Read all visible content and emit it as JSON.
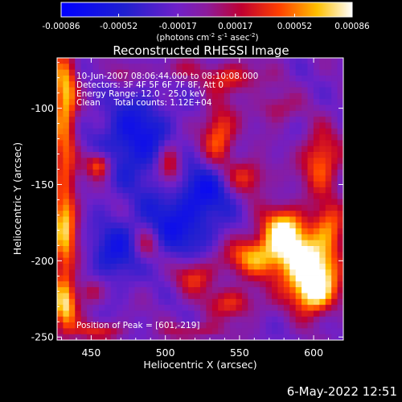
{
  "chart_data": {
    "type": "heatmap",
    "title": "Reconstructed RHESSI Image",
    "xlabel": "Heliocentric X (arcsec)",
    "ylabel": "Heliocentric Y (arcsec)",
    "xlim": [
      427,
      620
    ],
    "ylim": [
      -252,
      -67
    ],
    "x_ticks": [
      450,
      500,
      550,
      600
    ],
    "y_ticks": [
      -100,
      -150,
      -200,
      -250
    ],
    "x_tick_labels": [
      "450",
      "500",
      "550",
      "600"
    ],
    "y_tick_labels": [
      "-100",
      "-150",
      "-200",
      "-250"
    ],
    "colorbar": {
      "ticks": [
        -0.00086,
        -0.00052,
        -0.00017,
        0.00017,
        0.00052,
        0.00086
      ],
      "tick_labels": [
        "-0.00086",
        "-0.00052",
        "-0.00017",
        "0.00017",
        "0.00052",
        "0.00086"
      ],
      "range": [
        -0.00086,
        0.00086
      ],
      "colormap": "blue-purple-red-yellow-white"
    },
    "annotations": [
      "10-Jun-2007 08:06:44.000 to 08:10:08.000",
      "Detectors: 3F 4F 5F 6F 7F 8F, Att 0",
      "Energy Range: 12.0 - 25.0 keV",
      "Clean     Total counts: 1.12E+04",
      "Position of Peak = [601,-219]"
    ],
    "peak": {
      "x": 601,
      "y": -219
    },
    "sources": [
      {
        "x": 595,
        "y": -203,
        "sx": 16,
        "sy": 13,
        "a": 1.05
      },
      {
        "x": 580,
        "y": -180,
        "sx": 11,
        "sy": 11,
        "a": 0.95
      },
      {
        "x": 600,
        "y": -222,
        "sx": 10,
        "sy": 10,
        "a": 0.9
      },
      {
        "x": 558,
        "y": -197,
        "sx": 14,
        "sy": 9,
        "a": 0.7
      },
      {
        "x": 605,
        "y": -135,
        "sx": 9,
        "sy": 14,
        "a": 0.7
      },
      {
        "x": 610,
        "y": -178,
        "sx": 8,
        "sy": 12,
        "a": 0.6
      },
      {
        "x": 432,
        "y": -95,
        "sx": 6,
        "sy": 28,
        "a": 0.85
      },
      {
        "x": 432,
        "y": -180,
        "sx": 6,
        "sy": 30,
        "a": 0.85
      },
      {
        "x": 432,
        "y": -232,
        "sx": 6,
        "sy": 12,
        "a": 0.7
      },
      {
        "x": 455,
        "y": -137,
        "sx": 6,
        "sy": 6,
        "a": 0.75
      },
      {
        "x": 503,
        "y": -137,
        "sx": 6,
        "sy": 10,
        "a": 0.65
      },
      {
        "x": 536,
        "y": -118,
        "sx": 8,
        "sy": 14,
        "a": 0.7
      },
      {
        "x": 555,
        "y": -145,
        "sx": 10,
        "sy": 8,
        "a": 0.55
      },
      {
        "x": 545,
        "y": -80,
        "sx": 14,
        "sy": 7,
        "a": 0.5
      },
      {
        "x": 520,
        "y": -210,
        "sx": 10,
        "sy": 8,
        "a": 0.55
      },
      {
        "x": 545,
        "y": -228,
        "sx": 12,
        "sy": 7,
        "a": 0.5
      },
      {
        "x": 487,
        "y": -190,
        "sx": 6,
        "sy": 8,
        "a": 0.45
      },
      {
        "x": 455,
        "y": -246,
        "sx": 12,
        "sy": 4,
        "a": 0.45
      },
      {
        "x": 520,
        "y": -246,
        "sx": 14,
        "sy": 4,
        "a": 0.35
      },
      {
        "x": 575,
        "y": -100,
        "sx": 9,
        "sy": 7,
        "a": 0.35
      },
      {
        "x": 505,
        "y": -75,
        "sx": 10,
        "sy": 5,
        "a": 0.3
      },
      {
        "x": 470,
        "y": -78,
        "sx": 6,
        "sy": 5,
        "a": 0.3
      },
      {
        "x": 450,
        "y": -220,
        "sx": 6,
        "sy": 6,
        "a": 0.4
      },
      {
        "x": 480,
        "y": -120,
        "sx": 18,
        "sy": 20,
        "a": -0.55
      },
      {
        "x": 510,
        "y": -175,
        "sx": 20,
        "sy": 18,
        "a": -0.5
      },
      {
        "x": 465,
        "y": -195,
        "sx": 12,
        "sy": 14,
        "a": -0.45
      },
      {
        "x": 530,
        "y": -150,
        "sx": 12,
        "sy": 12,
        "a": -0.4
      }
    ]
  },
  "footer": {
    "timestamp": "6-May-2022 12:51"
  }
}
